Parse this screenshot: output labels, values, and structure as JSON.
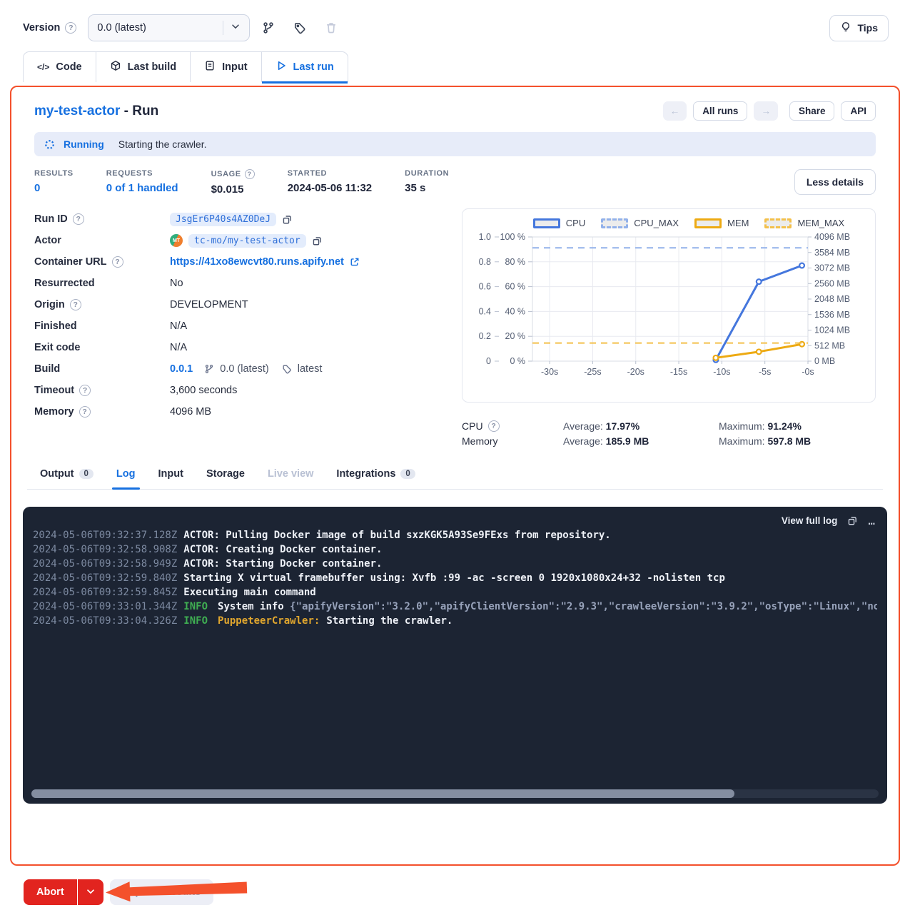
{
  "colors": {
    "accent_blue": "#1670e0",
    "outline_orange": "#f4512c",
    "abort_red": "#e2241f",
    "status_bg": "#e7ecf9",
    "log_bg": "#1c2433",
    "log_info_green": "#3fae52",
    "log_source_orange": "#e0a62e",
    "chart_cpu_blue": "#4577dd",
    "chart_mem_orange": "#edaa13"
  },
  "icons": {
    "help_glyph": "?",
    "prev_glyph": "←",
    "next_glyph": "→",
    "dots_glyph": "…",
    "code_glyph": "</>"
  },
  "version_bar": {
    "label": "Version",
    "selected": "0.0 (latest)",
    "tips_label": "Tips"
  },
  "main_tabs": [
    {
      "label": "Code"
    },
    {
      "label": "Last build"
    },
    {
      "label": "Input"
    },
    {
      "label": "Last run",
      "active": true
    }
  ],
  "run_header": {
    "actor_link": "my-test-actor",
    "suffix": " - Run",
    "all_runs_label": "All runs",
    "share_label": "Share",
    "api_label": "API"
  },
  "status_bar": {
    "state": "Running",
    "message": "Starting the crawler."
  },
  "stats": [
    {
      "label": "RESULTS",
      "value": "0",
      "blue": true
    },
    {
      "label": "REQUESTS",
      "value": "0 of 1 handled",
      "blue": true
    },
    {
      "label": "USAGE",
      "help": true,
      "value": "$0.015"
    },
    {
      "label": "STARTED",
      "value": "2024-05-06 11:32"
    },
    {
      "label": "DURATION",
      "value": "35 s"
    }
  ],
  "less_details_label": "Less details",
  "details": {
    "rows": [
      {
        "label": "Run ID",
        "help": true,
        "type": "badge_copy",
        "value": "JsgEr6P40s4AZ0DeJ"
      },
      {
        "label": "Actor",
        "type": "actor",
        "avatar_text": "MT",
        "value": "tc-mo/my-test-actor"
      },
      {
        "label": "Container URL",
        "help": true,
        "type": "link_external",
        "value": "https://41xo8ewcvt80.runs.apify.net"
      },
      {
        "label": "Resurrected",
        "type": "text",
        "value": "No"
      },
      {
        "label": "Origin",
        "help": true,
        "type": "text",
        "value": "DEVELOPMENT"
      },
      {
        "label": "Finished",
        "type": "text",
        "value": "N/A"
      },
      {
        "label": "Exit code",
        "type": "text",
        "value": "N/A"
      },
      {
        "label": "Build",
        "type": "build",
        "link": "0.0.1",
        "branch": "0.0 (latest)",
        "tag": "latest"
      },
      {
        "label": "Timeout",
        "help": true,
        "type": "text",
        "value": "3,600 seconds"
      },
      {
        "label": "Memory",
        "help": true,
        "type": "text",
        "value": "4096 MB"
      }
    ]
  },
  "chart_data": {
    "type": "line",
    "legend": [
      "CPU",
      "CPU_MAX",
      "MEM",
      "MEM_MAX"
    ],
    "legend_position": "top",
    "grid": true,
    "x_ticks": [
      -30,
      -25,
      -20,
      -15,
      -10,
      -5,
      0
    ],
    "x_tick_labels": [
      "-30s",
      "-25s",
      "-20s",
      "-15s",
      "-10s",
      "-5s",
      "-0s"
    ],
    "x_range": [
      -32,
      0
    ],
    "left_axis_ratio_ticks": [
      "1.0",
      "0.8",
      "0.6",
      "0.4",
      "0.2",
      "0"
    ],
    "left_axis_pct_ticks": [
      "100 %",
      "80 %",
      "60 %",
      "40 %",
      "20 %",
      "0 %"
    ],
    "pct_range": [
      0,
      100
    ],
    "right_axis_mb_ticks": [
      "4096 MB",
      "3584 MB",
      "3072 MB",
      "2560 MB",
      "2048 MB",
      "1536 MB",
      "1024 MB",
      "512 MB",
      "0 MB"
    ],
    "mem_scale_max_mb": 4096,
    "series": [
      {
        "name": "CPU",
        "unit": "%",
        "style": "solid",
        "color": "#4577dd",
        "points": [
          [
            -10.7,
            1
          ],
          [
            -5.7,
            64
          ],
          [
            -0.7,
            77
          ]
        ]
      },
      {
        "name": "CPU_MAX",
        "unit": "%",
        "style": "dashed",
        "color": "#92b1ea",
        "value": 91.24
      },
      {
        "name": "MEM",
        "unit": "MB",
        "style": "solid",
        "color": "#edaa13",
        "points": [
          [
            -10.7,
            110
          ],
          [
            -5.7,
            310
          ],
          [
            -0.7,
            560
          ]
        ]
      },
      {
        "name": "MEM_MAX",
        "unit": "MB",
        "style": "dashed",
        "color": "#f3c04b",
        "value": 597.8
      }
    ]
  },
  "usage_summary": {
    "rows": [
      {
        "label": "CPU",
        "help": true,
        "avg_label": "Average:",
        "avg": "17.97%",
        "max_label": "Maximum:",
        "max": "91.24%"
      },
      {
        "label": "Memory",
        "avg_label": "Average:",
        "avg": "185.9 MB",
        "max_label": "Maximum:",
        "max": "597.8 MB"
      }
    ]
  },
  "result_tabs": [
    {
      "label": "Output",
      "count": "0"
    },
    {
      "label": "Log",
      "active": true
    },
    {
      "label": "Input"
    },
    {
      "label": "Storage"
    },
    {
      "label": "Live view",
      "disabled": true
    },
    {
      "label": "Integrations",
      "count": "0"
    }
  ],
  "log": {
    "view_full_label": "View full log",
    "lines": [
      {
        "ts": "2024-05-06T09:32:37.128Z",
        "text": "ACTOR: Pulling Docker image of build sxzKGK5A93Se9FExs from repository."
      },
      {
        "ts": "2024-05-06T09:32:58.908Z",
        "text": "ACTOR: Creating Docker container."
      },
      {
        "ts": "2024-05-06T09:32:58.949Z",
        "text": "ACTOR: Starting Docker container."
      },
      {
        "ts": "2024-05-06T09:32:59.840Z",
        "text": "Starting X virtual framebuffer using: Xvfb :99 -ac -screen 0 1920x1080x24+32 -nolisten tcp"
      },
      {
        "ts": "2024-05-06T09:32:59.845Z",
        "text": "Executing main command"
      },
      {
        "ts": "2024-05-06T09:33:01.344Z",
        "level": "INFO",
        "text": "System info ",
        "json_tail": "{\"apifyVersion\":\"3.2.0\",\"apifyClientVersion\":\"2.9.3\",\"crawleeVersion\":\"3.9.2\",\"osType\":\"Linux\",\"no"
      },
      {
        "ts": "2024-05-06T09:33:04.326Z",
        "level": "INFO",
        "source": "PuppeteerCrawler:",
        "text": "Starting the crawler."
      }
    ]
  },
  "footer": {
    "abort_label": "Abort",
    "export_label": "Export 0 results"
  }
}
